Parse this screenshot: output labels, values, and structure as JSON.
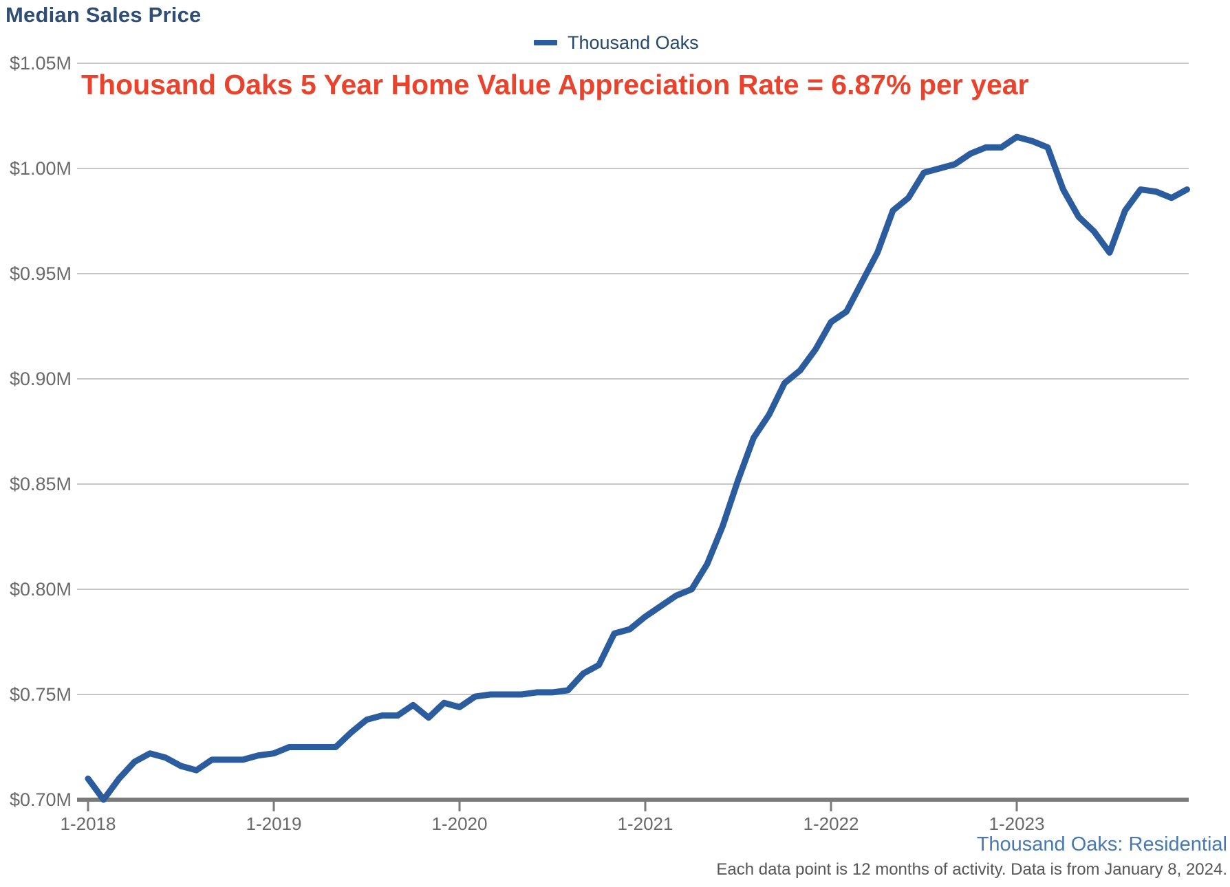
{
  "header": {
    "title": "Median Sales Price"
  },
  "legend": {
    "label": "Thousand Oaks"
  },
  "annotation": {
    "text": "Thousand Oaks 5 Year Home Value Appreciation Rate = 6.87% per year",
    "color": "#e8432c"
  },
  "footer": {
    "source_label": "Thousand Oaks: Residential",
    "note": "Each data point is 12 months of activity. Data is from January 8, 2024."
  },
  "colors": {
    "line": "#2b5d9e",
    "title": "#2f4e75",
    "gridline": "#c6c6c6",
    "axis": "#7a7a7a",
    "tick_label": "#696969"
  },
  "chart_data": {
    "type": "line",
    "title": "Median Sales Price",
    "x_unit": "month",
    "x_start": "1-2018",
    "x_end": "12-2023",
    "points_per_year": 12,
    "x_tick_labels": [
      "1-2018",
      "1-2019",
      "1-2020",
      "1-2021",
      "1-2022",
      "1-2023"
    ],
    "y_ticks": [
      0.7,
      0.75,
      0.8,
      0.85,
      0.9,
      0.95,
      1.0,
      1.05
    ],
    "y_tick_labels": [
      "$0.70M",
      "$0.75M",
      "$0.80M",
      "$0.85M",
      "$0.90M",
      "$0.95M",
      "$1.00M",
      "$1.05M"
    ],
    "ylim": [
      0.7,
      1.05
    ],
    "grid": "horizontal",
    "legend_position": "top-center",
    "series": [
      {
        "name": "Thousand Oaks",
        "color": "#2b5d9e",
        "values_unit": "millions_usd",
        "values": [
          0.71,
          0.7,
          0.71,
          0.718,
          0.722,
          0.72,
          0.716,
          0.714,
          0.719,
          0.719,
          0.719,
          0.721,
          0.722,
          0.725,
          0.725,
          0.725,
          0.725,
          0.732,
          0.738,
          0.74,
          0.74,
          0.745,
          0.739,
          0.746,
          0.744,
          0.749,
          0.75,
          0.75,
          0.75,
          0.751,
          0.751,
          0.752,
          0.76,
          0.764,
          0.779,
          0.781,
          0.787,
          0.792,
          0.797,
          0.8,
          0.812,
          0.83,
          0.852,
          0.872,
          0.883,
          0.898,
          0.904,
          0.914,
          0.927,
          0.932,
          0.946,
          0.96,
          0.98,
          0.986,
          0.998,
          1.0,
          1.002,
          1.007,
          1.01,
          1.01,
          1.015,
          1.013,
          1.01,
          0.99,
          0.977,
          0.97,
          0.96,
          0.98,
          0.99,
          0.989,
          0.986,
          0.99
        ]
      }
    ],
    "annotation": "Thousand Oaks 5 Year Home Value Appreciation Rate = 6.87% per year"
  }
}
